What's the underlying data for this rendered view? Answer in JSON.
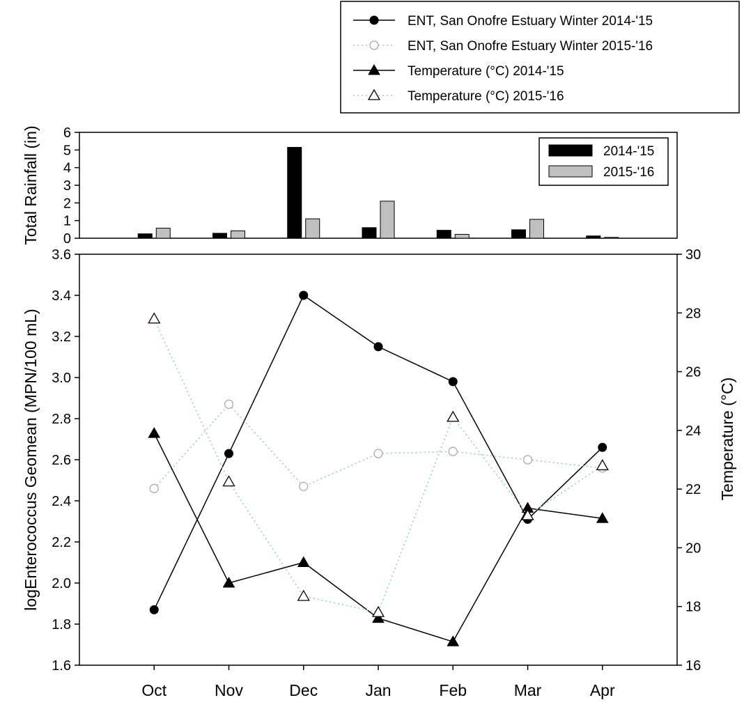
{
  "chart_data": [
    {
      "type": "bar",
      "ylabel": "Total Rainfall (in)",
      "ylim": [
        0,
        6
      ],
      "yticks": [
        0,
        1,
        2,
        3,
        4,
        5,
        6
      ],
      "categories": [
        "Oct",
        "Nov",
        "Dec",
        "Jan",
        "Feb",
        "Mar",
        "Apr"
      ],
      "series": [
        {
          "name": "2014-'15",
          "color": "#000000",
          "values": [
            0.25,
            0.28,
            5.15,
            0.6,
            0.45,
            0.48,
            0.13
          ]
        },
        {
          "name": "2015-'16",
          "color": "#c0c0c0",
          "values": [
            0.57,
            0.42,
            1.1,
            2.1,
            0.22,
            1.07,
            0.05
          ]
        }
      ],
      "legend_position": "top-right"
    },
    {
      "type": "line",
      "categories": [
        "Oct",
        "Nov",
        "Dec",
        "Jan",
        "Feb",
        "Mar",
        "Apr"
      ],
      "ylabel": "logEnterococcus Geomean (MPN/100 mL)",
      "ylim": [
        1.6,
        3.6
      ],
      "yticks": [
        "1.6",
        "1.8",
        "2.0",
        "2.2",
        "2.4",
        "2.6",
        "2.8",
        "3.0",
        "3.2",
        "3.4",
        "3.6"
      ],
      "y2label": "Temperature (°C)",
      "y2lim": [
        16,
        30
      ],
      "y2ticks": [
        "16",
        "18",
        "20",
        "22",
        "24",
        "26",
        "28",
        "30"
      ],
      "series": [
        {
          "name": "ENT, San Onofre Estuary Winter 2014-'15",
          "axis": "left",
          "marker": "circle-filled",
          "line": "solid",
          "color": "#000000",
          "values": [
            1.87,
            2.63,
            3.4,
            3.15,
            2.98,
            2.31,
            2.66
          ]
        },
        {
          "name": "ENT, San Onofre Estuary Winter 2015-'16",
          "axis": "left",
          "marker": "circle-open",
          "line": "dotted",
          "color": "#8fd0c8",
          "marker_color": "#aaaaaa",
          "values": [
            2.46,
            2.87,
            2.47,
            2.63,
            2.64,
            2.6,
            2.56
          ]
        },
        {
          "name": "Temperature (°C) 2014-'15",
          "axis": "right",
          "marker": "triangle-filled",
          "line": "solid",
          "color": "#000000",
          "values": [
            23.9,
            18.8,
            19.5,
            17.6,
            16.8,
            21.35,
            21.0
          ]
        },
        {
          "name": "Temperature (°C) 2015-'16",
          "axis": "right",
          "marker": "triangle-open",
          "line": "dotted",
          "color": "#8fd0c8",
          "marker_color": "#000000",
          "values": [
            27.8,
            22.25,
            18.35,
            17.8,
            24.45,
            21.1,
            22.8
          ]
        }
      ],
      "legend_position": "top-outside-right"
    }
  ]
}
